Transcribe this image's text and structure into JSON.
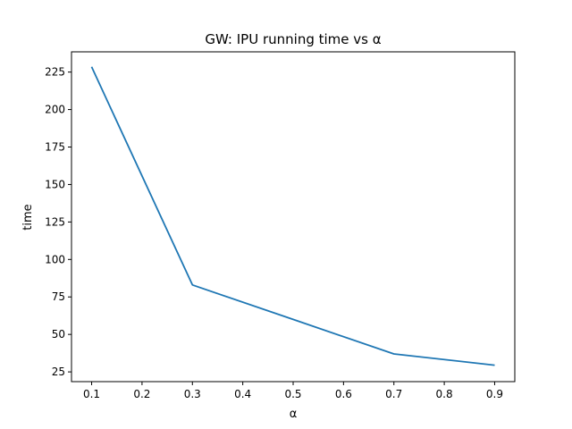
{
  "chart_data": {
    "type": "line",
    "title": "GW: IPU running time vs α",
    "xlabel": "α",
    "ylabel": "time",
    "x": [
      0.1,
      0.3,
      0.5,
      0.7,
      0.9
    ],
    "series": [
      {
        "values": [
          228.5,
          83.0,
          60.0,
          37.0,
          29.5
        ],
        "color": "#1f77b4"
      }
    ],
    "xlim": [
      0.06,
      0.94
    ],
    "ylim": [
      18.5,
      238.5
    ],
    "xticks": [
      0.1,
      0.2,
      0.3,
      0.4,
      0.5,
      0.6,
      0.7,
      0.8,
      0.9
    ],
    "yticks": [
      25,
      50,
      75,
      100,
      125,
      150,
      175,
      200,
      225
    ],
    "grid": false,
    "legend": "none"
  }
}
